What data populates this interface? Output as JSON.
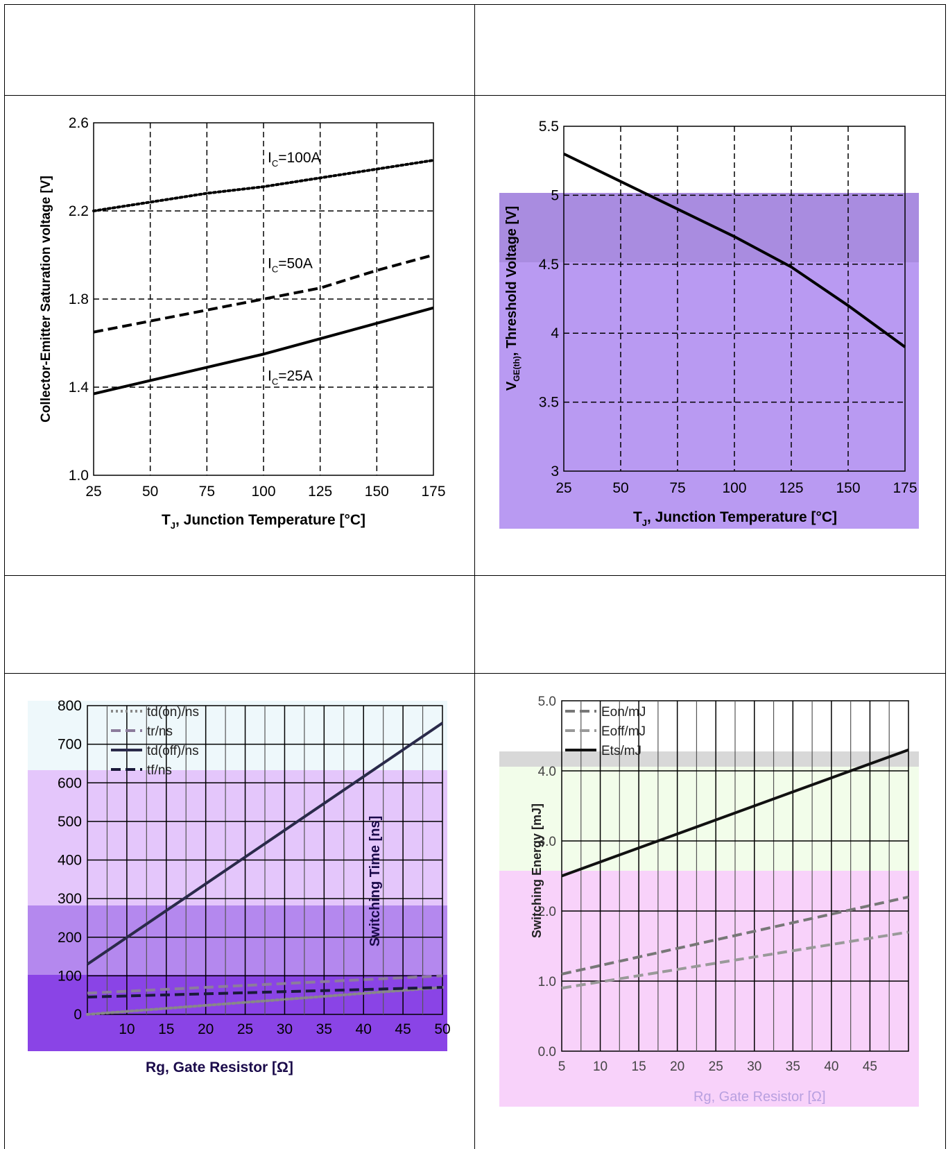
{
  "charts": [
    {
      "chart_data": {
        "type": "line",
        "xlabel_main": "T",
        "xlabel_sub": "J",
        "xlabel_rest": ", Junction Temperature [°C]",
        "ylabel": "Collector-Emitter Saturation voltage [V]",
        "xlim": [
          25,
          175
        ],
        "ylim": [
          1.0,
          2.6
        ],
        "xticks": [
          25,
          50,
          75,
          100,
          125,
          150,
          175
        ],
        "yticks": [
          1.0,
          1.4,
          1.8,
          2.2,
          2.6
        ],
        "ytick_labels": [
          "1.0",
          "1.4",
          "1.8",
          "2.2",
          "2.6"
        ],
        "grid": true,
        "series": [
          {
            "name": "100A",
            "style": "dotted",
            "x": [
              25,
              50,
              75,
              100,
              125,
              150,
              175
            ],
            "y": [
              2.2,
              2.24,
              2.28,
              2.31,
              2.35,
              2.39,
              2.43
            ]
          },
          {
            "name": "50A",
            "style": "dashed",
            "x": [
              25,
              50,
              75,
              100,
              125,
              150,
              175
            ],
            "y": [
              1.65,
              1.7,
              1.75,
              1.8,
              1.85,
              1.93,
              2.0
            ]
          },
          {
            "name": "25A",
            "style": "solid",
            "x": [
              25,
              50,
              75,
              100,
              125,
              150,
              175
            ],
            "y": [
              1.37,
              1.43,
              1.49,
              1.55,
              1.62,
              1.69,
              1.76
            ]
          }
        ],
        "annotations": [
          {
            "prefix": "I",
            "sub": "C",
            "text": "=100A",
            "x": 100,
            "y": 2.42
          },
          {
            "prefix": "I",
            "sub": "C",
            "text": "=50A",
            "x": 100,
            "y": 1.94
          },
          {
            "prefix": "I",
            "sub": "C",
            "text": "=25A",
            "x": 100,
            "y": 1.43
          }
        ]
      }
    },
    {
      "chart_data": {
        "type": "line",
        "xlabel_main": "T",
        "xlabel_sub": "J",
        "xlabel_rest": ", Junction Temperature [°C]",
        "ylabel_main": "V",
        "ylabel_sub": "GE(th)",
        "ylabel_rest": ",  Threshold Voltage [V]",
        "xlim": [
          25,
          175
        ],
        "ylim": [
          3,
          5.5
        ],
        "xticks": [
          25,
          50,
          75,
          100,
          125,
          150,
          175
        ],
        "yticks": [
          3,
          3.5,
          4,
          4.5,
          5,
          5.5
        ],
        "ytick_labels": [
          "3",
          "3.5",
          "4",
          "4.5",
          "5",
          "5.5"
        ],
        "grid": true,
        "series": [
          {
            "name": "",
            "style": "solid",
            "x": [
              25,
              50,
              75,
              100,
              125,
              150,
              175
            ],
            "y": [
              5.3,
              5.1,
              4.9,
              4.7,
              4.48,
              4.2,
              3.9
            ]
          }
        ]
      }
    },
    {
      "chart_data": {
        "type": "line",
        "xlabel": "Rg, Gate Resistor [Ω]",
        "ylabel": "Switching Time [ns]",
        "xlim": [
          5,
          50
        ],
        "ylim": [
          0,
          800
        ],
        "xticks": [
          10,
          15,
          20,
          25,
          30,
          35,
          40,
          45,
          50
        ],
        "yticks": [
          0,
          100,
          200,
          300,
          400,
          500,
          600,
          700,
          800
        ],
        "ytick_labels": [
          "0",
          "100",
          "200",
          "300",
          "400",
          "500",
          "600",
          "700",
          "800"
        ],
        "grid": true,
        "series": [
          {
            "name": "td(on)/ns",
            "style": "dotted",
            "color": "#888888",
            "x": [
              5,
              50
            ],
            "y": [
              0,
              70
            ]
          },
          {
            "name": "tr/ns",
            "style": "dashed",
            "color": "#8c7c9c",
            "x": [
              5,
              50
            ],
            "y": [
              55,
              100
            ]
          },
          {
            "name": "td(off)/ns",
            "style": "solid",
            "color": "#2a2a4a",
            "x": [
              5,
              50
            ],
            "y": [
              130,
              755
            ]
          },
          {
            "name": "tf/ns",
            "style": "dashed",
            "color": "#1a1a3a",
            "x": [
              5,
              50
            ],
            "y": [
              45,
              70
            ]
          }
        ]
      }
    },
    {
      "chart_data": {
        "type": "line",
        "xlabel": "Rg, Gate Resistor [Ω]",
        "ylabel": "Switching Energy [mJ]",
        "xlim": [
          5,
          50
        ],
        "ylim": [
          0,
          5
        ],
        "xticks": [
          5,
          10,
          15,
          20,
          25,
          30,
          35,
          40,
          45
        ],
        "yticks": [
          0,
          1,
          2,
          3,
          4,
          5
        ],
        "ytick_labels": [
          "0.0",
          "1.0",
          "2.0",
          "3.0",
          "4.0",
          "5.0"
        ],
        "grid": true,
        "series": [
          {
            "name": "Eon/mJ",
            "style": "dashed",
            "color": "#777777",
            "x": [
              5,
              50
            ],
            "y": [
              1.1,
              2.2
            ]
          },
          {
            "name": "Eoff/mJ",
            "style": "dashed",
            "color": "#999999",
            "x": [
              5,
              50
            ],
            "y": [
              0.9,
              1.7
            ]
          },
          {
            "name": "Ets/mJ",
            "style": "solid",
            "color": "#111111",
            "x": [
              5,
              50
            ],
            "y": [
              2.5,
              4.3
            ]
          }
        ]
      }
    }
  ]
}
